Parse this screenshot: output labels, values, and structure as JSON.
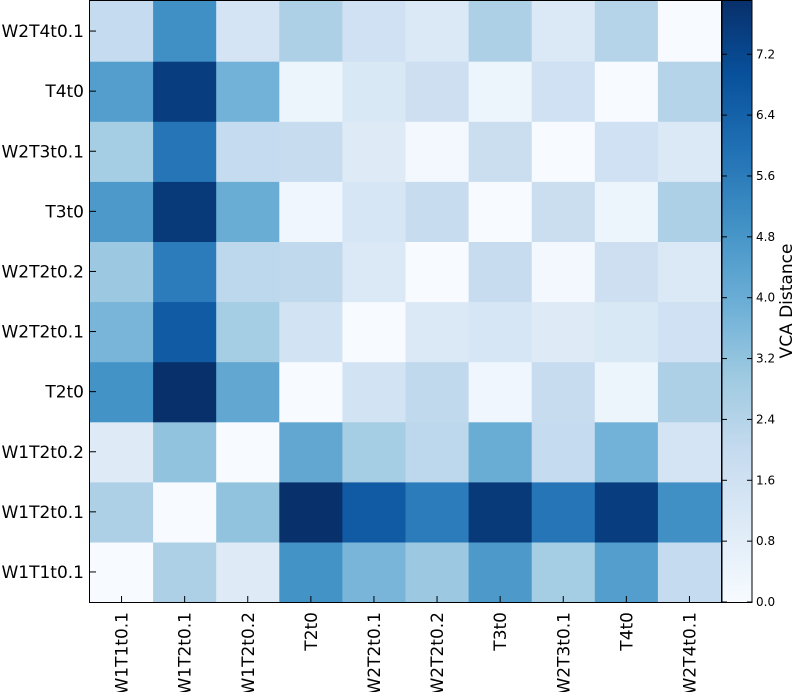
{
  "chart_data": {
    "type": "heatmap",
    "x_labels": [
      "W1T1t0.1",
      "W1T2t0.1",
      "W1T2t0.2",
      "T2t0",
      "W2T2t0.1",
      "W2T2t0.2",
      "T3t0",
      "W2T3t0.1",
      "T4t0",
      "W2T4t0.1"
    ],
    "y_labels": [
      "W1T1t0.1",
      "W1T2t0.1",
      "W1T2t0.2",
      "T2t0",
      "W2T2t0.1",
      "W2T2t0.2",
      "T3t0",
      "W2T3t0.1",
      "T4t0",
      "W2T4t0.1"
    ],
    "matrix": [
      [
        0.0,
        2.6,
        1.0,
        4.9,
        3.7,
        3.0,
        4.7,
        2.8,
        4.5,
        2.0
      ],
      [
        2.6,
        0.0,
        3.2,
        7.9,
        6.6,
        5.6,
        7.6,
        5.8,
        7.5,
        5.0
      ],
      [
        1.0,
        3.2,
        0.0,
        4.2,
        2.8,
        2.2,
        4.0,
        2.0,
        3.8,
        1.4
      ],
      [
        4.9,
        7.9,
        4.2,
        0.0,
        1.5,
        2.1,
        0.3,
        1.9,
        0.4,
        2.6
      ],
      [
        3.7,
        6.6,
        2.8,
        1.5,
        0.0,
        1.1,
        1.3,
        1.0,
        1.2,
        1.6
      ],
      [
        3.0,
        5.6,
        2.2,
        2.1,
        1.1,
        0.0,
        1.9,
        0.2,
        1.7,
        1.1
      ],
      [
        4.7,
        7.6,
        4.0,
        0.3,
        1.3,
        1.9,
        0.0,
        1.8,
        0.4,
        2.6
      ],
      [
        2.8,
        5.8,
        2.0,
        1.9,
        1.0,
        0.2,
        1.8,
        0.0,
        1.6,
        1.1
      ],
      [
        4.5,
        7.5,
        3.8,
        0.4,
        1.2,
        1.7,
        0.4,
        1.6,
        0.0,
        2.4
      ],
      [
        2.0,
        5.0,
        1.4,
        2.6,
        1.6,
        1.1,
        2.6,
        1.1,
        2.4,
        0.0
      ]
    ],
    "colorbar": {
      "label": "VCA Distance",
      "ticks": [
        "0.0",
        "0.8",
        "1.6",
        "2.4",
        "3.2",
        "4.0",
        "4.8",
        "5.6",
        "6.4",
        "7.2"
      ],
      "range": [
        0,
        7.9
      ]
    },
    "colormap": [
      "#f7fbff",
      "#deebf7",
      "#c6dbef",
      "#9ecae1",
      "#6baed6",
      "#4292c6",
      "#2171b5",
      "#08519c",
      "#08306b"
    ]
  }
}
